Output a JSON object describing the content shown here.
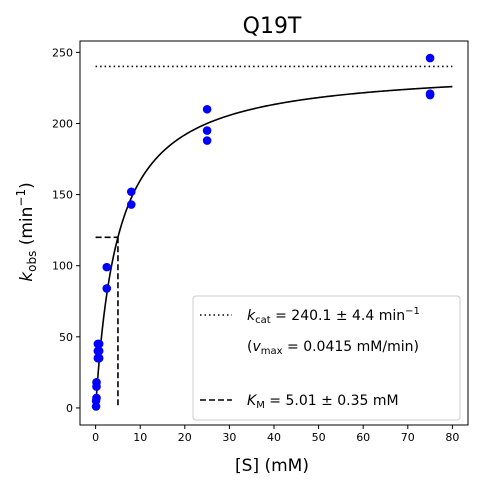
{
  "chart_data": {
    "type": "scatter",
    "title": "Q19T",
    "xlabel": {
      "prefix": "[S] (",
      "unit": "mM",
      "suffix": ")"
    },
    "ylabel": {
      "base": "k",
      "sub": "obs",
      "mid": " (min",
      "sup": "−1",
      "end": ")"
    },
    "xlim": [
      -3.5,
      83.5
    ],
    "ylim": [
      -12,
      258
    ],
    "xticks": [
      0,
      10,
      20,
      30,
      40,
      50,
      60,
      70,
      80
    ],
    "yticks": [
      0,
      50,
      100,
      150,
      200,
      250
    ],
    "grid": false,
    "legend_position": "lower-right",
    "series": [
      {
        "kind": "points",
        "color": "#0000ff",
        "x": [
          0.1,
          0.1,
          0.2,
          0.2,
          0.2,
          0.5,
          0.5,
          0.5,
          0.8,
          0.8,
          0.8,
          2.5,
          2.5,
          8,
          8,
          25,
          25,
          25,
          75,
          75,
          75
        ],
        "y": [
          1,
          5,
          7,
          15,
          18,
          35,
          40,
          45,
          35,
          40,
          45,
          84,
          99,
          143,
          152,
          188,
          195,
          210,
          220,
          221,
          246
        ]
      },
      {
        "kind": "fit",
        "color": "#000000",
        "model": "michaelis-menten",
        "vmax": 240.1,
        "km": 5.01,
        "x_range": [
          0.05,
          80
        ]
      },
      {
        "kind": "hline-dotted",
        "color": "#000000",
        "y": 240.1,
        "x_range": [
          0,
          80
        ]
      },
      {
        "kind": "km-marker-dashed",
        "color": "#000000",
        "y": 120,
        "x": 5.01
      }
    ],
    "legend": [
      {
        "style": "dotted",
        "line1": {
          "base": "k",
          "sub": "cat",
          "text": " = 240.1 ± 4.4 min",
          "sup": "−1"
        },
        "line2": {
          "open": "(",
          "base": "v",
          "sub": "max",
          "text": " = 0.0415 mM/min)"
        }
      },
      {
        "style": "dashed",
        "line1": {
          "base": "K",
          "sub": "M",
          "text": " = 5.01 ± 0.35 mM"
        }
      }
    ]
  }
}
